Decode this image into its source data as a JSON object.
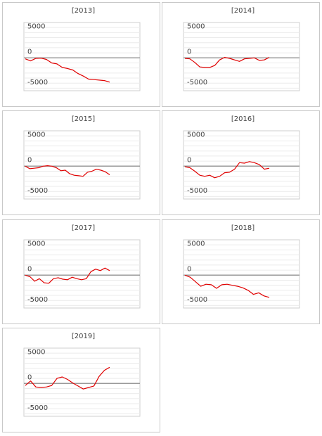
{
  "colors": {
    "line": "#e00000",
    "zero_line": "#9a9a9a",
    "grid": "#ebebeb",
    "plot_border": "#cfcfcf",
    "panel_border": "#c9c9c9"
  },
  "chart_data": [
    {
      "type": "line",
      "title": "[2013]",
      "ylim": [
        -6500,
        7000
      ],
      "yticks": [
        "5000",
        "0",
        "-5000"
      ],
      "series": [
        {
          "values": [
            -200,
            -600,
            -100,
            -50,
            -300,
            -1000,
            -1200,
            -1900,
            -2100,
            -2400,
            -3100,
            -3600,
            -4200,
            -4300,
            -4400,
            -4500,
            -4800
          ]
        }
      ]
    },
    {
      "type": "line",
      "title": "[2014]",
      "ylim": [
        -6500,
        7000
      ],
      "yticks": [
        "5000",
        "0",
        "-5000"
      ],
      "series": [
        {
          "values": [
            -100,
            -200,
            -900,
            -1800,
            -1900,
            -1900,
            -1500,
            -400,
            100,
            -100,
            -400,
            -700,
            -200,
            -100,
            0,
            -500,
            -400,
            100
          ]
        }
      ]
    },
    {
      "type": "line",
      "title": "[2015]",
      "ylim": [
        -6500,
        7000
      ],
      "yticks": [
        "5000",
        "0",
        "-5000"
      ],
      "series": [
        {
          "values": [
            0,
            -500,
            -400,
            -300,
            0,
            100,
            0,
            -300,
            -900,
            -800,
            -1500,
            -1800,
            -1900,
            -2000,
            -1200,
            -1000,
            -600,
            -800,
            -1100,
            -1700
          ]
        }
      ]
    },
    {
      "type": "line",
      "title": "[2016]",
      "ylim": [
        -6500,
        7000
      ],
      "yticks": [
        "5000",
        "0",
        "-5000"
      ],
      "series": [
        {
          "values": [
            -100,
            -300,
            -1000,
            -1800,
            -2000,
            -1800,
            -2300,
            -2000,
            -1300,
            -1200,
            -600,
            700,
            600,
            900,
            700,
            300,
            -600,
            -400
          ]
        }
      ]
    },
    {
      "type": "line",
      "title": "[2017]",
      "ylim": [
        -6500,
        7000
      ],
      "yticks": [
        "5000",
        "0",
        "-5000"
      ],
      "series": [
        {
          "values": [
            0,
            -300,
            -1200,
            -700,
            -1500,
            -1600,
            -700,
            -500,
            -800,
            -900,
            -400,
            -700,
            -900,
            -700,
            700,
            1200,
            900,
            1400,
            900
          ]
        }
      ]
    },
    {
      "type": "line",
      "title": "[2018]",
      "ylim": [
        -6500,
        7000
      ],
      "yticks": [
        "5000",
        "0",
        "-5000"
      ],
      "series": [
        {
          "values": [
            0,
            -400,
            -1300,
            -2200,
            -1800,
            -1900,
            -2600,
            -1900,
            -1800,
            -2000,
            -2200,
            -2500,
            -3000,
            -3800,
            -3500,
            -4100,
            -4400
          ]
        }
      ]
    },
    {
      "type": "line",
      "title": "[2019]",
      "ylim": [
        -6500,
        7000
      ],
      "yticks": [
        "5000",
        "0",
        "-5000"
      ],
      "series": [
        {
          "values": [
            -400,
            500,
            -700,
            -800,
            -700,
            -400,
            1000,
            1300,
            800,
            100,
            -500,
            -1100,
            -800,
            -500,
            1400,
            2600,
            3200
          ]
        }
      ]
    }
  ]
}
